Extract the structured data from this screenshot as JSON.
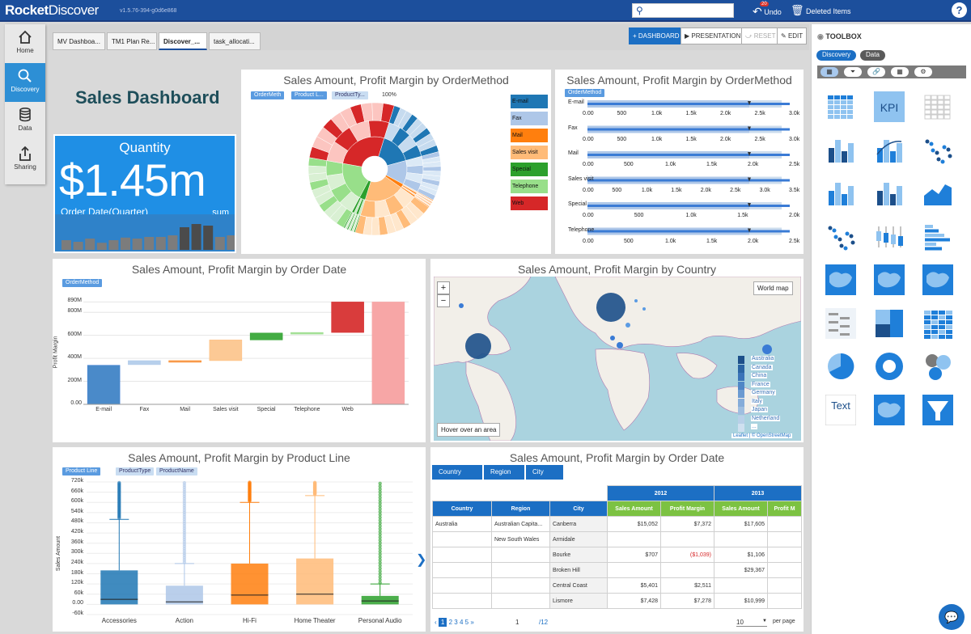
{
  "app": {
    "brand": "Rocket",
    "product": "Discover",
    "version": "v1.5.76-394-g0d6e868",
    "undo_label": "Undo",
    "undo_badge": "20",
    "deleted_label": "Deleted Items",
    "help": "?"
  },
  "leftnav": [
    {
      "label": "Home",
      "icon": "home-icon"
    },
    {
      "label": "Discovery",
      "icon": "search-icon"
    },
    {
      "label": "Data",
      "icon": "database-icon"
    },
    {
      "label": "Sharing",
      "icon": "share-icon"
    }
  ],
  "tabs": [
    "MV Dashboa...",
    "TM1 Plan Re...",
    "Discover_...",
    "task_allocati..."
  ],
  "toolbar": {
    "dashboard": "DASHBOARD",
    "presentation": "PRESENTATION",
    "reset": "RESET",
    "edit": "EDIT"
  },
  "dashboard_title": "Sales Dashboard",
  "kpi": {
    "label": "Quantity",
    "value": "$1.45m",
    "sub": "Order Date(Quarter)",
    "agg": "sum",
    "bars": [
      0.3,
      0.25,
      0.35,
      0.22,
      0.3,
      0.38,
      0.35,
      0.4,
      0.4,
      0.45,
      0.7,
      0.8,
      0.75,
      0.4,
      0.45
    ]
  },
  "panel1": {
    "title": "Sales Amount, Profit Margin by OrderMethod",
    "chips": [
      "OrderMeth",
      "Product L...",
      "ProductTy..."
    ],
    "pct": "100%",
    "legend": [
      {
        "label": "E-mail",
        "color": "#1f77b4"
      },
      {
        "label": "Fax",
        "color": "#aec7e8"
      },
      {
        "label": "Mail",
        "color": "#ff7f0e"
      },
      {
        "label": "Sales visit",
        "color": "#ffbb78"
      },
      {
        "label": "Special",
        "color": "#2ca02c"
      },
      {
        "label": "Telephone",
        "color": "#98df8a"
      },
      {
        "label": "Web",
        "color": "#d62728"
      }
    ]
  },
  "panel2": {
    "title": "Sales Amount, Profit Margin by OrderMethod",
    "chip": "OrderMethod",
    "rows": [
      {
        "label": "E-mail",
        "ticks": [
          "0.00",
          "500",
          "1.0k",
          "1.5k",
          "2.0k",
          "2.5k",
          "3.0k"
        ]
      },
      {
        "label": "Fax",
        "ticks": [
          "0.00",
          "500",
          "1.0k",
          "1.5k",
          "2.0k",
          "2.5k",
          "3.0k"
        ]
      },
      {
        "label": "Mail",
        "ticks": [
          "0.00",
          "500",
          "1.0k",
          "1.5k",
          "2.0k",
          "2.5k"
        ]
      },
      {
        "label": "Sales visit",
        "ticks": [
          "0.00",
          "500",
          "1.0k",
          "1.5k",
          "2.0k",
          "2.5k",
          "3.0k",
          "3.5k"
        ]
      },
      {
        "label": "Special",
        "ticks": [
          "0.00",
          "500",
          "1.0k",
          "1.5k",
          "2.0k"
        ]
      },
      {
        "label": "Telephone",
        "ticks": [
          "0.00",
          "500",
          "1.0k",
          "1.5k",
          "2.0k",
          "2.5k"
        ]
      }
    ]
  },
  "panel3": {
    "title": "Sales Amount, Profit Margin by Order Date",
    "chip": "OrderMethod",
    "ylabel": "Profit Margin",
    "yticks": [
      "0.00",
      "200M",
      "400M",
      "600M",
      "800M",
      "890M"
    ]
  },
  "chart_data": [
    {
      "type": "bar",
      "title": "Sales Amount, Profit Margin by Order Date",
      "xlabel": "",
      "ylabel": "Profit Margin",
      "categories": [
        "E-mail",
        "Fax",
        "Mail",
        "Sales visit",
        "Special",
        "Telephone",
        "Web",
        ""
      ],
      "series": [
        {
          "values": [
            [
              0,
              340
            ],
            [
              345,
              380
            ],
            [
              380,
              380
            ],
            [
              380,
              560
            ],
            [
              560,
              620
            ],
            [
              620,
              625
            ],
            [
              625,
              890
            ],
            [
              0,
              890
            ]
          ]
        }
      ],
      "ylim": [
        0,
        900
      ],
      "grid": true
    },
    {
      "type": "scatter",
      "title": "Sales Amount, Profit Margin by Product Line",
      "chips": [
        "Product Line",
        "ProductType",
        "ProductName"
      ],
      "ylabel": "Sales Amount",
      "categories": [
        "Accessories",
        "Action",
        "Hi-Fi",
        "Home Theater",
        "Personal Audio"
      ],
      "yticks": [
        "-60k",
        "0.00",
        "60k",
        "120k",
        "180k",
        "240k",
        "300k",
        "360k",
        "420k",
        "480k",
        "540k",
        "600k",
        "660k",
        "720k"
      ],
      "box": [
        {
          "q1": 0,
          "q3": 200,
          "med": 30,
          "whisker_hi": 500,
          "color": "#1f77b4"
        },
        {
          "q1": 0,
          "q3": 110,
          "med": 15,
          "whisker_hi": 240,
          "color": "#aec7e8"
        },
        {
          "q1": 0,
          "q3": 240,
          "med": 55,
          "whisker_hi": 600,
          "color": "#ff7f0e"
        },
        {
          "q1": 0,
          "q3": 270,
          "med": 60,
          "whisker_hi": 640,
          "color": "#ffbb78"
        },
        {
          "q1": 0,
          "q3": 50,
          "med": 20,
          "whisker_hi": 120,
          "color": "#2ca02c"
        }
      ],
      "ylim": [
        -60,
        720
      ]
    }
  ],
  "panel4": {
    "title": "Sales Amount, Profit Margin by Country",
    "world_map": "World map",
    "hover": "Hover over an area",
    "attribution": "Leaflet | © OpenStreetMap",
    "legend": [
      "Australia",
      "Canada",
      "China",
      "France",
      "Germany",
      "Italy",
      "Japan",
      "Netherland",
      "..."
    ]
  },
  "panel5": {
    "title": "Sales Amount, Profit Margin by Product Line",
    "chips": [
      "Product Line",
      "ProductType",
      "ProductName"
    ],
    "ylabel": "Sales Amount"
  },
  "panel6": {
    "title": "Sales Amount, Profit Margin by Order Date",
    "breadcrumbs": [
      "Country",
      "Region",
      "City"
    ],
    "years": [
      "2012",
      "2013"
    ],
    "headers": [
      "Country",
      "Region",
      "City",
      "Sales Amount",
      "Profit Margin",
      "Sales Amount",
      "Profit M"
    ],
    "rows": [
      [
        "Australia",
        "Australian Capita...",
        "Canberra",
        "$15,052",
        "$7,372",
        "$17,605",
        ""
      ],
      [
        "",
        "New South Wales",
        "Armidale",
        "",
        "",
        "",
        ""
      ],
      [
        "",
        "",
        "Bourke",
        "$707",
        "($1,039)",
        "$1,106",
        ""
      ],
      [
        "",
        "",
        "Broken Hill",
        "",
        "",
        "$29,367",
        ""
      ],
      [
        "",
        "",
        "Central Coast",
        "$5,401",
        "$2,511",
        "",
        ""
      ],
      [
        "",
        "",
        "Lismore",
        "$7,428",
        "$7,278",
        "$10,999",
        ""
      ]
    ],
    "pager": {
      "pages": [
        "1",
        "2",
        "3",
        "4",
        "5",
        "»"
      ],
      "current": "1",
      "total": "/12",
      "per_page_value": "10",
      "per_page_label": "per page"
    }
  },
  "toolbox": {
    "title": "TOOLBOX",
    "tabs": [
      "Discovery",
      "Data"
    ],
    "icons": [
      "chart-icon",
      "filter-icon",
      "link-icon",
      "grid-icon",
      "gear-icon"
    ],
    "tiles": [
      "table-widget-icon",
      "kpi-widget-icon",
      "pivot-widget-icon",
      "bar-chart-icon",
      "combo-chart-icon",
      "scatter-chart-icon",
      "stacked-bar-icon",
      "column-chart-icon",
      "area-chart-icon",
      "dot-plot-icon",
      "box-plot-icon",
      "horizontal-bar-icon",
      "choropleth-map-icon",
      "point-map-icon",
      "custom-viz-icon",
      "word-cloud-icon",
      "treemap-icon",
      "heatmap-icon",
      "pie-chart-icon",
      "sunburst-icon",
      "bubble-chart-icon",
      "text-widget-icon",
      "web-widget-icon",
      "funnel-icon"
    ],
    "kpi_text": "KPI",
    "text_tile": "Text"
  }
}
